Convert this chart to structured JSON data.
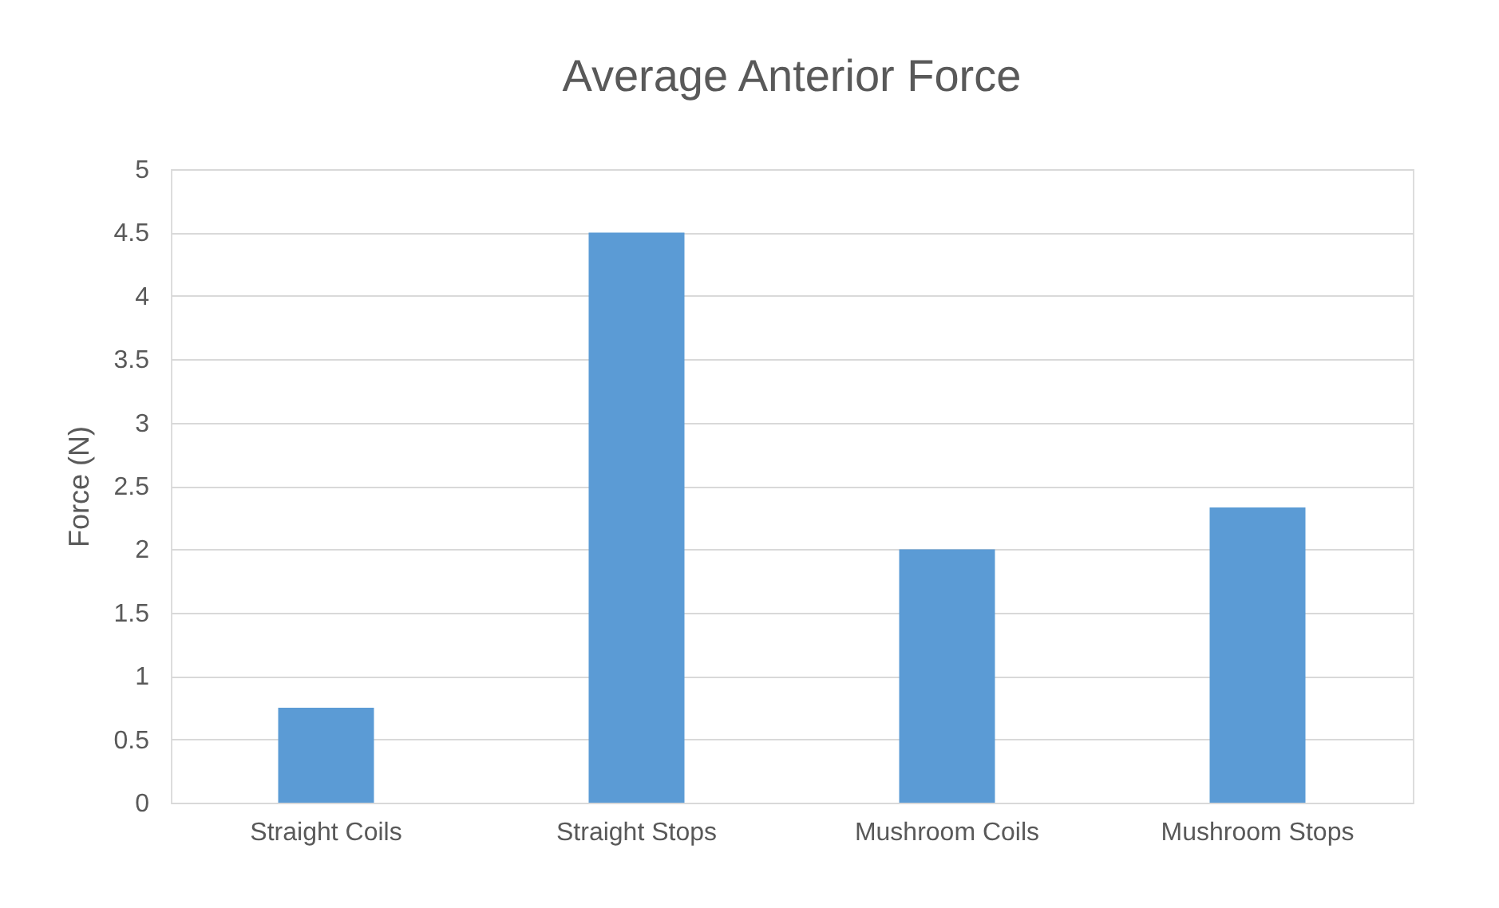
{
  "chart_data": {
    "type": "bar",
    "title": "Average Anterior Force",
    "ylabel": "Force (N)",
    "categories": [
      "Straight Coils",
      "Straight Stops",
      "Mushroom Coils",
      "Mushroom Stops"
    ],
    "values": [
      0.75,
      4.5,
      2.0,
      2.33
    ],
    "color": "#5b9bd5",
    "ylim": [
      0,
      5
    ],
    "yticks": [
      0,
      0.5,
      1,
      1.5,
      2,
      2.5,
      3,
      3.5,
      4,
      4.5,
      5
    ],
    "grid": "y"
  }
}
